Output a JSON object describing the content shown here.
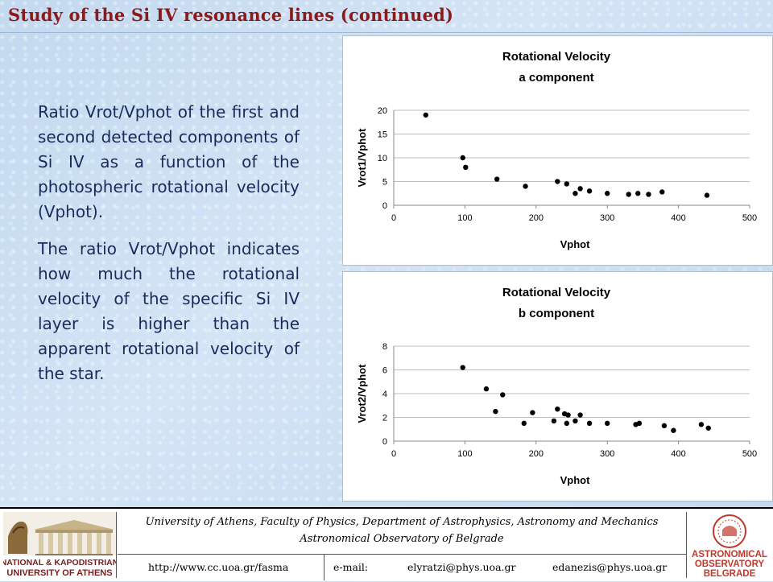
{
  "slide": {
    "title": "Study of the Si IV resonance lines (continued)",
    "paragraph1": "Ratio Vrot/Vphot of the first and second detected components of Si IV as a function of the photospheric rotational velocity (Vphot).",
    "paragraph2": "The ratio Vrot/Vphot indicates how much the rotational velocity of the specific Si IV layer is higher than the apparent rotational velocity of the star."
  },
  "footer": {
    "line1": "University of Athens, Faculty of Physics, Department of Astrophysics, Astronomy and Mechanics",
    "line2": "Astronomical Observatory of Belgrade",
    "url": "http://www.cc.uoa.gr/fasma",
    "email_label": "e-mail:",
    "email1": "elyratzi@phys.uoa.gr",
    "email2": "edanezis@phys.uoa.gr",
    "logo_left_line1": "NATIONAL & KAPODISTRIAN",
    "logo_left_line2": "UNIVERSITY OF ATHENS",
    "logo_right_line1": "ASTRONOMICAL",
    "logo_right_line2": "OBSERVATORY",
    "logo_right_line3": "BELGRADE",
    "logo_left_color": "#7a1c1c",
    "logo_right_color": "#c0392b"
  },
  "chart_data": [
    {
      "type": "scatter",
      "title": "Rotational Velocity",
      "subtitle": "a component",
      "xlabel": "Vphot",
      "ylabel": "Vrot1/Vphot",
      "xlim": [
        0,
        500
      ],
      "ylim": [
        0,
        20
      ],
      "xticks": [
        0,
        100,
        200,
        300,
        400,
        500
      ],
      "yticks": [
        0,
        5,
        10,
        15,
        20
      ],
      "grid": "horizontal",
      "marker_color": "#000000",
      "points": [
        [
          45,
          19
        ],
        [
          97,
          10
        ],
        [
          101,
          8
        ],
        [
          145,
          5.5
        ],
        [
          185,
          4
        ],
        [
          230,
          5
        ],
        [
          243,
          4.5
        ],
        [
          255,
          2.5
        ],
        [
          262,
          3.5
        ],
        [
          275,
          3
        ],
        [
          300,
          2.5
        ],
        [
          330,
          2.3
        ],
        [
          343,
          2.5
        ],
        [
          358,
          2.3
        ],
        [
          377,
          2.8
        ],
        [
          440,
          2.1
        ]
      ]
    },
    {
      "type": "scatter",
      "title": "Rotational Velocity",
      "subtitle": "b component",
      "xlabel": "Vphot",
      "ylabel": "Vrot2/Vphot",
      "xlim": [
        0,
        500
      ],
      "ylim": [
        0,
        8
      ],
      "xticks": [
        0,
        100,
        200,
        300,
        400,
        500
      ],
      "yticks": [
        0,
        2,
        4,
        6,
        8
      ],
      "grid": "horizontal",
      "marker_color": "#000000",
      "points": [
        [
          97,
          6.2
        ],
        [
          130,
          4.4
        ],
        [
          143,
          2.5
        ],
        [
          153,
          3.9
        ],
        [
          183,
          1.5
        ],
        [
          195,
          2.4
        ],
        [
          225,
          1.7
        ],
        [
          230,
          2.7
        ],
        [
          240,
          2.3
        ],
        [
          243,
          1.5
        ],
        [
          245,
          2.2
        ],
        [
          255,
          1.7
        ],
        [
          262,
          2.2
        ],
        [
          275,
          1.5
        ],
        [
          300,
          1.5
        ],
        [
          340,
          1.4
        ],
        [
          345,
          1.5
        ],
        [
          380,
          1.3
        ],
        [
          393,
          0.9
        ],
        [
          432,
          1.4
        ],
        [
          442,
          1.1
        ]
      ]
    }
  ]
}
